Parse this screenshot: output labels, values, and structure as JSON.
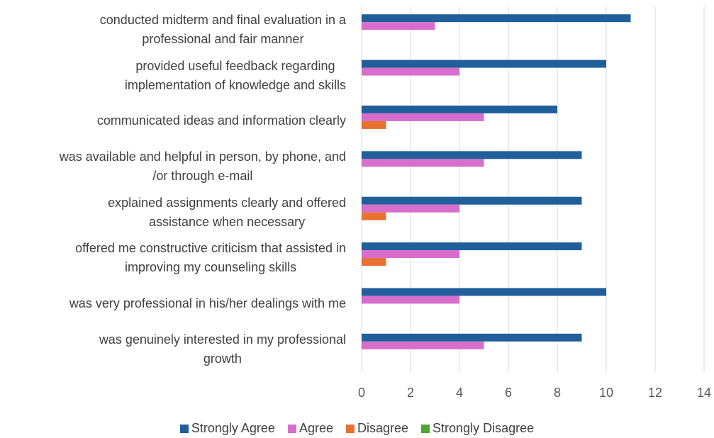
{
  "chart_data": {
    "type": "hbar",
    "categories": [
      "conducted midterm and final evaluation in a\nprofessional and fair manner",
      "provided useful feedback regarding\nimplementation of knowledge and skills",
      "communicated ideas and information clearly",
      "was available and helpful in person, by phone, and\n/or through e-mail",
      "explained assignments clearly and offered\nassistance when necessary",
      "offered me constructive criticism that assisted in\nimproving my counseling skills",
      "was very professional in his/her dealings with me",
      "was genuinely interested in my professional\ngrowth"
    ],
    "series": [
      {
        "name": "Strongly Agree",
        "color": "#215f9a",
        "values": [
          11,
          10,
          8,
          9,
          9,
          9,
          10,
          9
        ]
      },
      {
        "name": "Agree",
        "color": "#d86ecc",
        "values": [
          3,
          4,
          5,
          5,
          4,
          4,
          4,
          5
        ]
      },
      {
        "name": "Disagree",
        "color": "#e97132",
        "values": [
          0,
          0,
          1,
          0,
          1,
          1,
          0,
          0
        ]
      },
      {
        "name": "Strongly Disagree",
        "color": "#4ea72e",
        "values": [
          0,
          0,
          0,
          0,
          0,
          0,
          0,
          0
        ]
      }
    ],
    "xlim": [
      0,
      14
    ],
    "xticks": [
      0,
      2,
      4,
      6,
      8,
      10,
      12,
      14
    ],
    "grid": true,
    "legend": "bottom"
  }
}
